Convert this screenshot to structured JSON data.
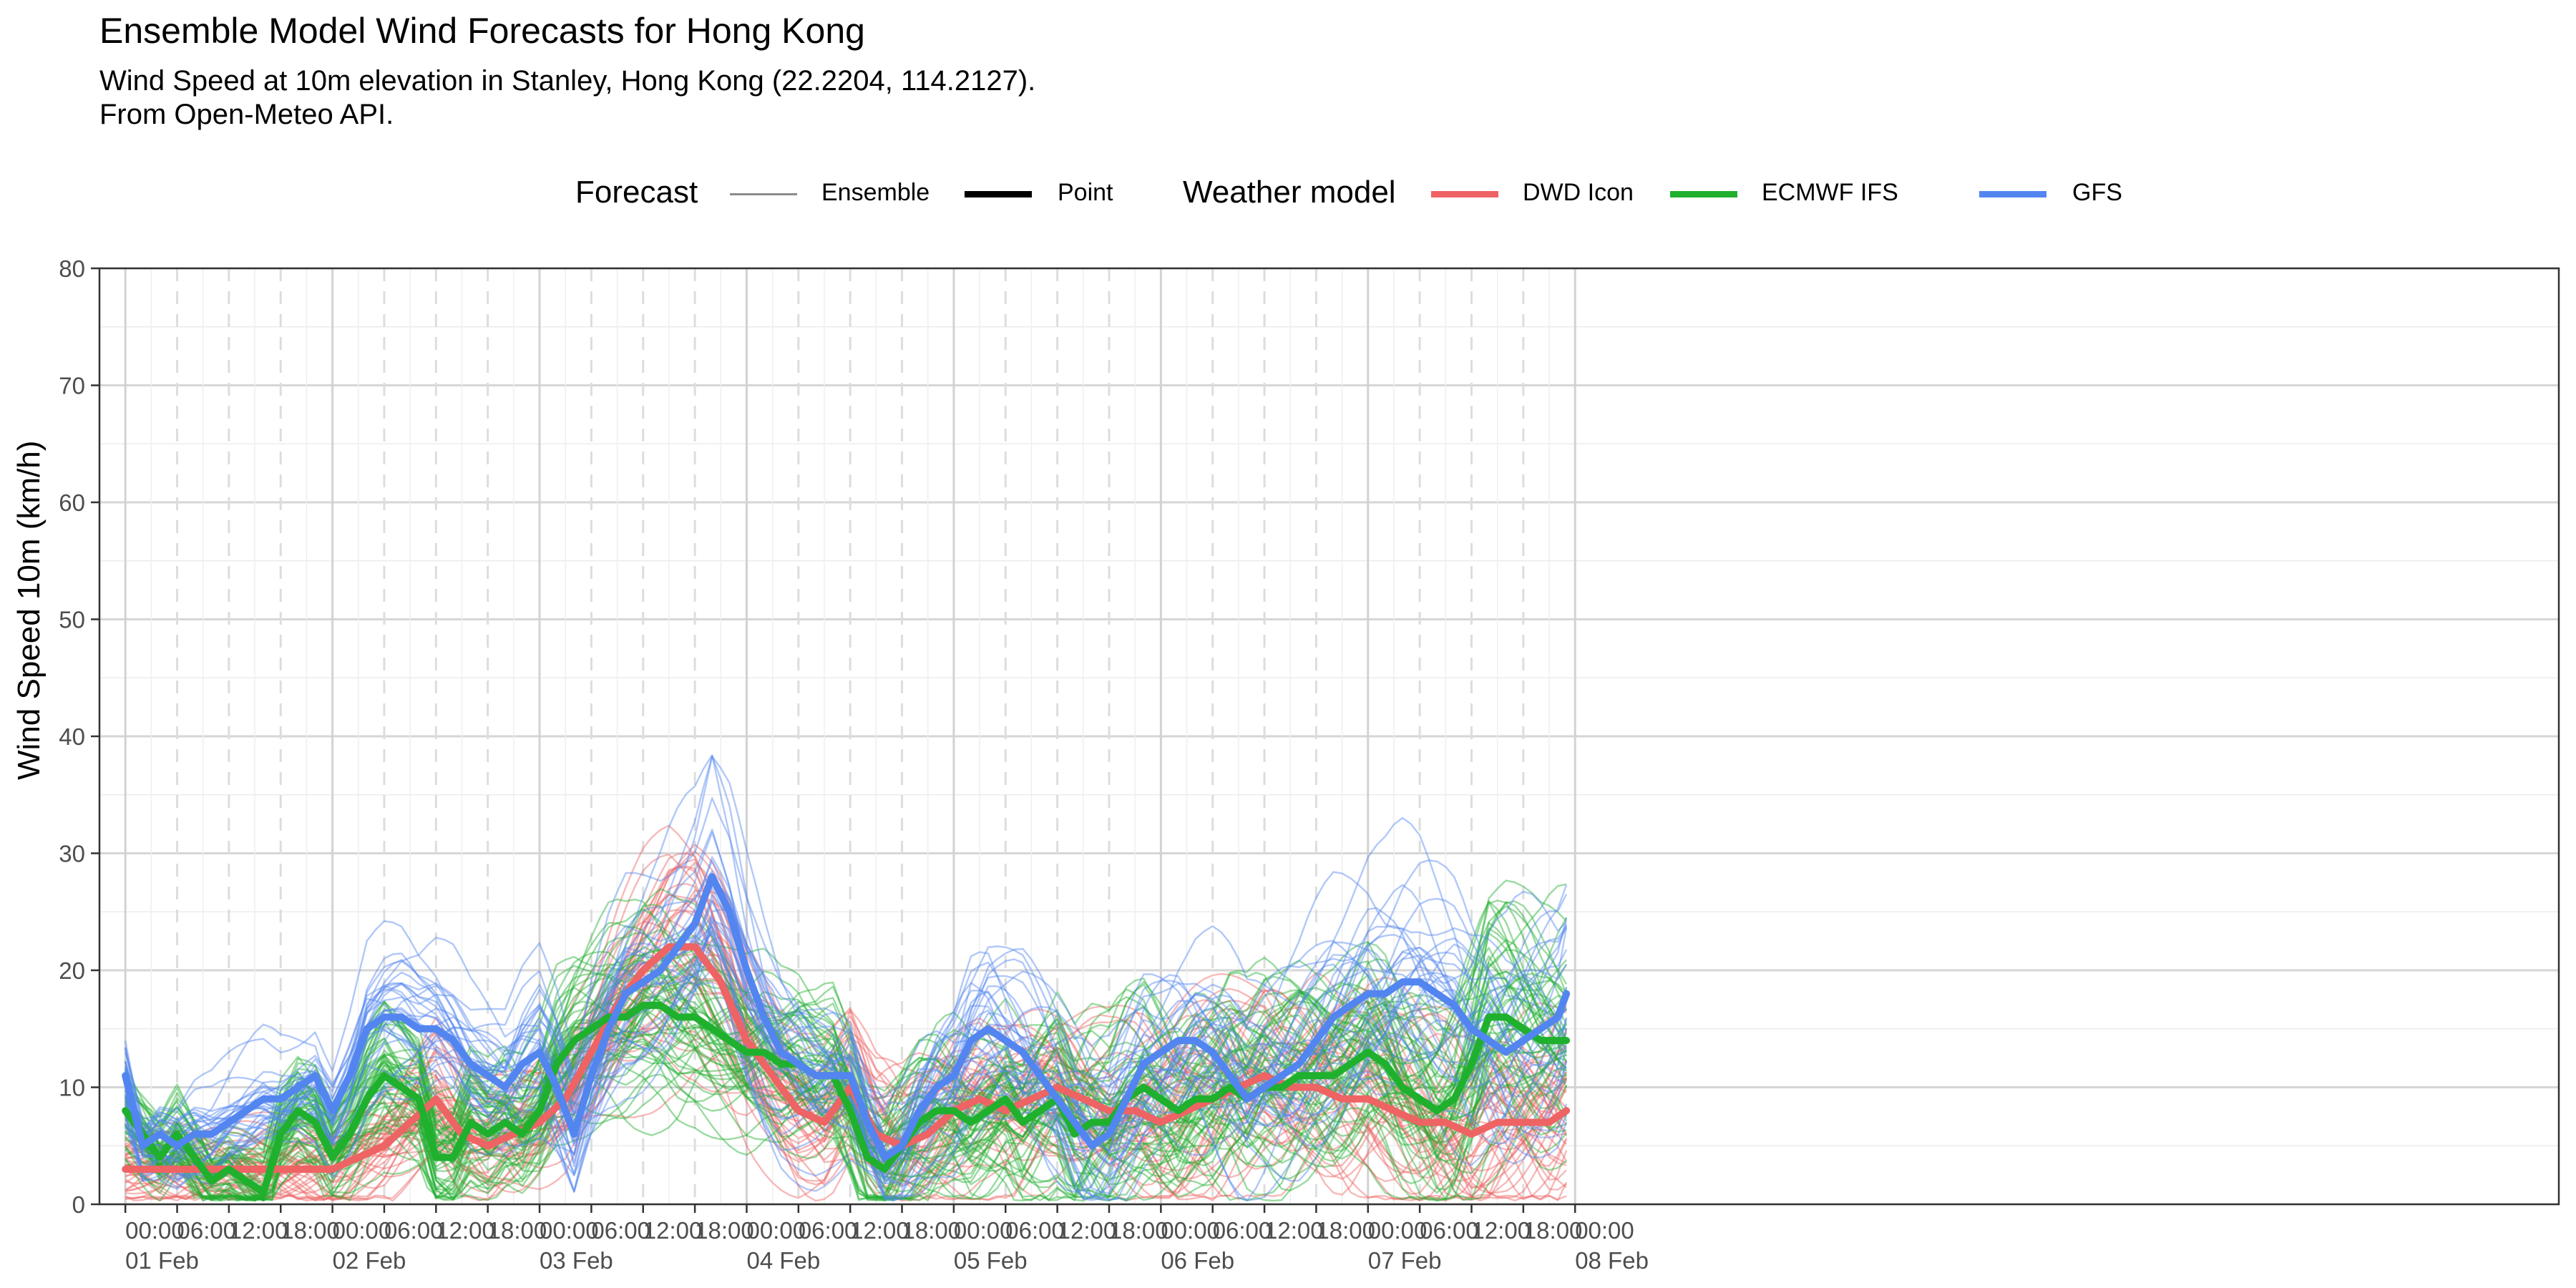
{
  "title": "Ensemble Model Wind Forecasts for Hong Kong",
  "subtitle_line1": "Wind Speed at 10m elevation in Stanley, Hong Kong (22.2204, 114.2127).",
  "subtitle_line2": "From Open-Meteo API.",
  "legend": {
    "forecast_title": "Forecast",
    "forecast_items": [
      "Ensemble",
      "Point"
    ],
    "model_title": "Weather model",
    "model_items": [
      {
        "name": "DWD Icon",
        "color": "#ee6363"
      },
      {
        "name": "ECMWF IFS",
        "color": "#1fb02e"
      },
      {
        "name": "GFS",
        "color": "#5285f0"
      }
    ]
  },
  "chart_data": {
    "type": "line",
    "title": "Ensemble Model Wind Forecasts for Hong Kong",
    "xlabel": "",
    "ylabel": "Wind Speed 10m (km/h)",
    "ylim": [
      0,
      80
    ],
    "yticks": [
      0,
      10,
      20,
      30,
      40,
      50,
      60,
      70,
      80
    ],
    "x_unit": "hours from 01 Feb 00:00",
    "xlim": [
      -3,
      282
    ],
    "xticks": [
      {
        "t": 0,
        "time": "00:00",
        "date": "01 Feb"
      },
      {
        "t": 6,
        "time": "06:00",
        "date": ""
      },
      {
        "t": 12,
        "time": "12:00",
        "date": ""
      },
      {
        "t": 18,
        "time": "18:00",
        "date": ""
      },
      {
        "t": 24,
        "time": "00:00",
        "date": "02 Feb"
      },
      {
        "t": 30,
        "time": "06:00",
        "date": ""
      },
      {
        "t": 36,
        "time": "12:00",
        "date": ""
      },
      {
        "t": 42,
        "time": "18:00",
        "date": ""
      },
      {
        "t": 48,
        "time": "00:00",
        "date": "03 Feb"
      },
      {
        "t": 54,
        "time": "06:00",
        "date": ""
      },
      {
        "t": 60,
        "time": "12:00",
        "date": ""
      },
      {
        "t": 66,
        "time": "18:00",
        "date": ""
      },
      {
        "t": 72,
        "time": "00:00",
        "date": "04 Feb"
      },
      {
        "t": 78,
        "time": "06:00",
        "date": ""
      },
      {
        "t": 84,
        "time": "12:00",
        "date": ""
      },
      {
        "t": 90,
        "time": "18:00",
        "date": ""
      },
      {
        "t": 96,
        "time": "00:00",
        "date": "05 Feb"
      },
      {
        "t": 102,
        "time": "06:00",
        "date": ""
      },
      {
        "t": 108,
        "time": "12:00",
        "date": ""
      },
      {
        "t": 114,
        "time": "18:00",
        "date": ""
      },
      {
        "t": 120,
        "time": "00:00",
        "date": "06 Feb"
      },
      {
        "t": 126,
        "time": "06:00",
        "date": ""
      },
      {
        "t": 132,
        "time": "12:00",
        "date": ""
      },
      {
        "t": 138,
        "time": "18:00",
        "date": ""
      },
      {
        "t": 144,
        "time": "00:00",
        "date": "07 Feb"
      },
      {
        "t": 150,
        "time": "06:00",
        "date": ""
      },
      {
        "t": 156,
        "time": "12:00",
        "date": ""
      },
      {
        "t": 162,
        "time": "18:00",
        "date": ""
      },
      {
        "t": 168,
        "time": "00:00",
        "date": "08 Feb"
      }
    ],
    "point_forecasts": [
      {
        "name": "DWD Icon",
        "color": "#ee6363",
        "x": [
          0,
          3,
          6,
          9,
          12,
          15,
          18,
          21,
          24,
          27,
          30,
          33,
          36,
          39,
          42,
          45,
          48,
          51,
          54,
          57,
          60,
          63,
          66,
          69,
          72,
          75,
          78,
          81,
          84,
          87,
          90,
          93,
          96,
          99,
          102,
          105,
          108,
          111,
          114,
          117,
          120,
          123,
          126,
          129,
          132,
          135,
          138,
          141,
          144,
          147,
          150,
          153,
          156,
          159,
          162,
          165,
          167
        ],
        "y": [
          3,
          3,
          3,
          3,
          3,
          3,
          3,
          3,
          3,
          4,
          5,
          7,
          9,
          6,
          5,
          6,
          7,
          9,
          13,
          17,
          20,
          22,
          22,
          19,
          14,
          11,
          8,
          7,
          10,
          6,
          5,
          6,
          8,
          9,
          8,
          9,
          10,
          9,
          8,
          8,
          7,
          8,
          9,
          10,
          11,
          10,
          10,
          9,
          9,
          8,
          7,
          7,
          6,
          7,
          7,
          7,
          8
        ]
      },
      {
        "name": "ECMWF IFS",
        "color": "#1fb02e",
        "x": [
          0,
          2,
          4,
          6,
          8,
          10,
          12,
          14,
          16,
          18,
          20,
          22,
          24,
          26,
          28,
          30,
          32,
          34,
          36,
          38,
          40,
          42,
          44,
          46,
          48,
          50,
          52,
          54,
          56,
          58,
          60,
          62,
          64,
          66,
          68,
          70,
          72,
          74,
          76,
          78,
          80,
          82,
          84,
          86,
          88,
          90,
          92,
          94,
          96,
          98,
          100,
          102,
          104,
          106,
          108,
          110,
          112,
          114,
          116,
          118,
          120,
          122,
          124,
          126,
          128,
          130,
          132,
          134,
          136,
          138,
          140,
          142,
          144,
          146,
          148,
          150,
          152,
          154,
          156,
          158,
          160,
          162,
          164,
          166,
          167
        ],
        "y": [
          8,
          6,
          4,
          6,
          4,
          2,
          3,
          2,
          1,
          6,
          8,
          7,
          4,
          6,
          9,
          11,
          10,
          9,
          4,
          4,
          7,
          6,
          7,
          6,
          8,
          12,
          14,
          15,
          16,
          16,
          17,
          17,
          16,
          16,
          15,
          14,
          13,
          13,
          12,
          12,
          11,
          11,
          8,
          4,
          3,
          5,
          7,
          8,
          8,
          7,
          8,
          9,
          7,
          8,
          9,
          6,
          7,
          7,
          9,
          10,
          9,
          8,
          9,
          9,
          10,
          9,
          10,
          10,
          11,
          11,
          11,
          12,
          13,
          12,
          10,
          9,
          8,
          9,
          12,
          16,
          16,
          15,
          14,
          14,
          14
        ]
      },
      {
        "name": "GFS",
        "color": "#5285f0",
        "x": [
          0,
          2,
          4,
          6,
          8,
          10,
          12,
          14,
          16,
          18,
          20,
          22,
          24,
          26,
          28,
          30,
          32,
          34,
          36,
          38,
          40,
          42,
          44,
          46,
          48,
          50,
          52,
          54,
          56,
          58,
          60,
          62,
          64,
          66,
          68,
          70,
          72,
          74,
          76,
          78,
          80,
          82,
          84,
          86,
          88,
          90,
          92,
          94,
          96,
          98,
          100,
          102,
          104,
          106,
          108,
          110,
          112,
          114,
          116,
          118,
          120,
          122,
          124,
          126,
          128,
          130,
          132,
          134,
          136,
          138,
          140,
          142,
          144,
          146,
          148,
          150,
          152,
          154,
          156,
          158,
          160,
          162,
          164,
          166,
          167
        ],
        "y": [
          11,
          5,
          6,
          5,
          6,
          6,
          7,
          8,
          9,
          9,
          10,
          11,
          8,
          11,
          15,
          16,
          16,
          15,
          15,
          14,
          12,
          11,
          10,
          12,
          13,
          10,
          6,
          11,
          15,
          18,
          19,
          20,
          22,
          24,
          28,
          25,
          20,
          16,
          13,
          12,
          11,
          11,
          11,
          7,
          4,
          5,
          8,
          10,
          11,
          14,
          15,
          14,
          13,
          11,
          9,
          7,
          5,
          6,
          9,
          12,
          13,
          14,
          14,
          13,
          11,
          9,
          10,
          11,
          12,
          14,
          16,
          17,
          18,
          18,
          19,
          19,
          18,
          17,
          15,
          14,
          13,
          14,
          15,
          16,
          18
        ]
      }
    ],
    "ensemble_members": [
      {
        "name": "DWD Icon",
        "color": "#ee6363",
        "count": 40
      },
      {
        "name": "ECMWF IFS",
        "color": "#1fb02e",
        "count": 50
      },
      {
        "name": "GFS",
        "color": "#5285f0",
        "count": 30
      }
    ],
    "grid": true,
    "legend_position": "top"
  }
}
